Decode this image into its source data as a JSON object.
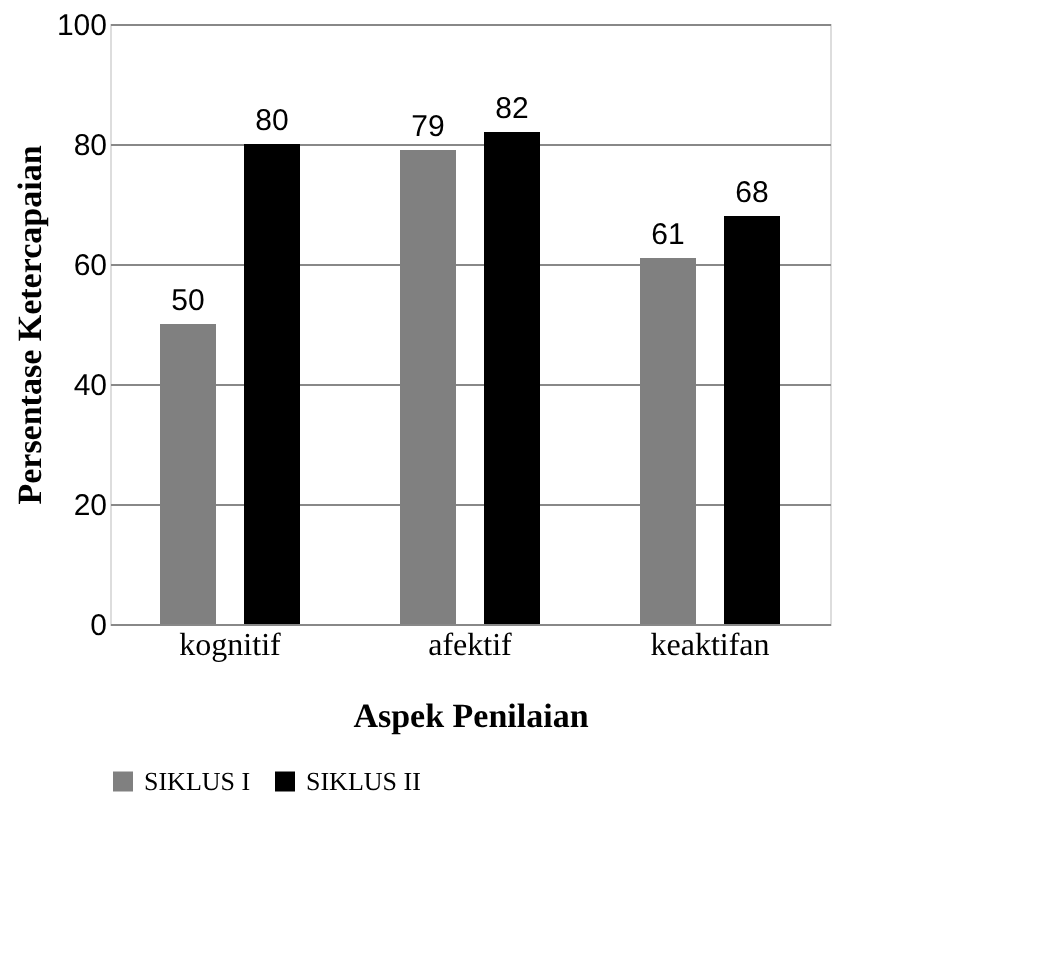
{
  "chart_data": {
    "type": "bar",
    "categories": [
      "kognitif",
      "afektif",
      "keaktifan"
    ],
    "series": [
      {
        "name": "SIKLUS I",
        "color": "#808080",
        "values": [
          50,
          79,
          61
        ]
      },
      {
        "name": "SIKLUS II",
        "color": "#000000",
        "values": [
          80,
          82,
          68
        ]
      }
    ],
    "ylim": [
      0,
      100
    ],
    "yticks": [
      0,
      20,
      40,
      60,
      80,
      100
    ],
    "ylabel": "Persentase Ketercapaian",
    "xlabel": "Aspek Penilaian",
    "grid": "y",
    "legend": "bottom",
    "data_labels": true
  }
}
